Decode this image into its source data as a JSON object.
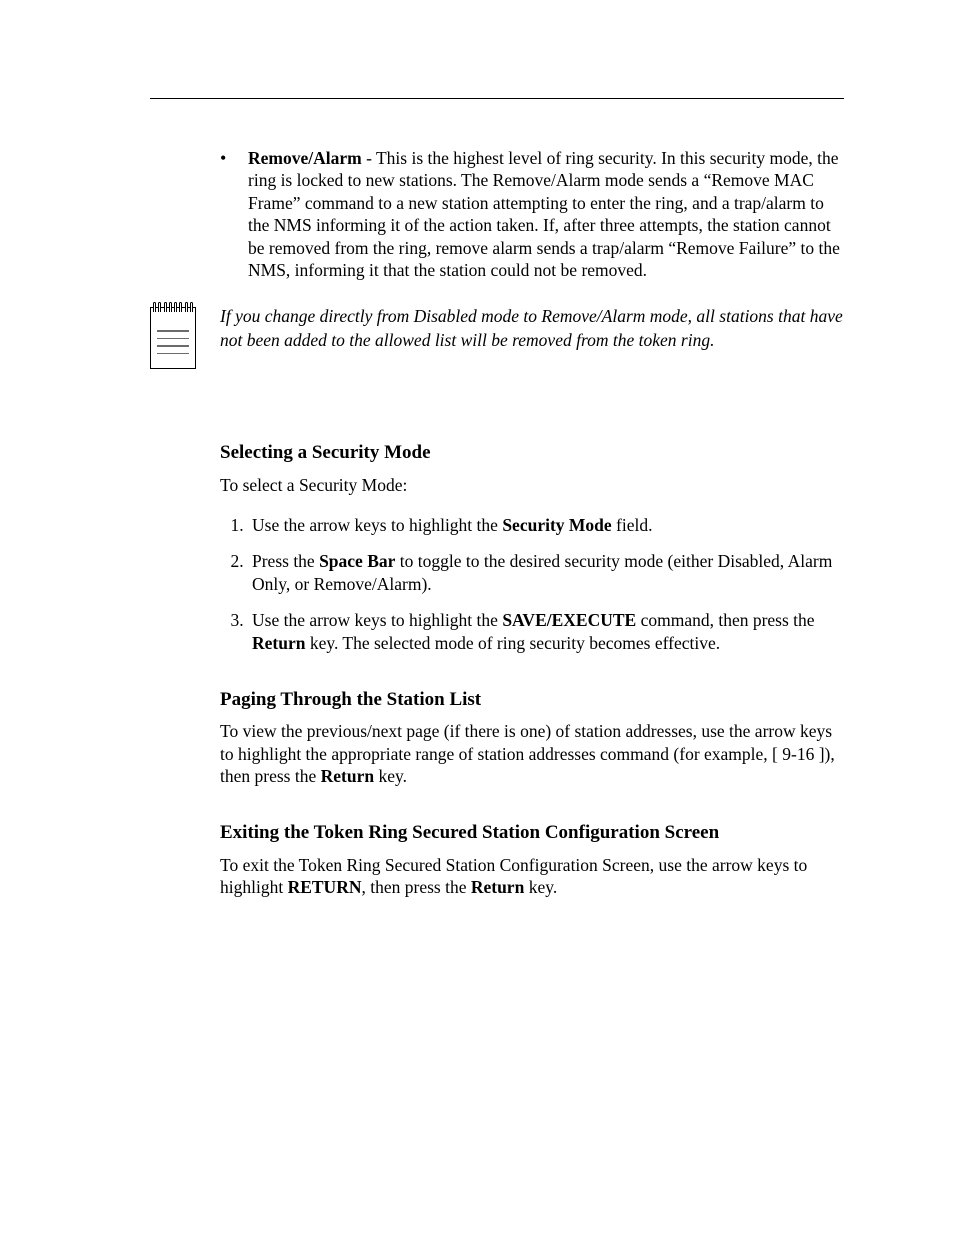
{
  "bullet": {
    "title": "Remove/Alarm",
    "text_after_title": " - This is the highest level of ring security. In this security mode, the ring is locked to new stations. The Remove/Alarm mode sends a “Remove MAC Frame” command to a new station attempting to enter the ring, and a trap/alarm to the NMS informing it of the action taken. If, after three attempts, the station cannot be removed from the ring, remove alarm sends a trap/alarm “Remove Failure” to the NMS, informing it that the station could not be removed."
  },
  "note": {
    "text": "If you change directly from Disabled mode to Remove/Alarm mode, all stations that have not been added to the allowed list will be removed from the token ring."
  },
  "select_mode": {
    "heading": "Selecting a Security Mode",
    "intro": "To select a Security Mode:",
    "steps": {
      "s1a": "Use the arrow keys to highlight the ",
      "s1b": "Security Mode",
      "s1c": " field.",
      "s2a": "Press the ",
      "s2b": "Space Bar",
      "s2c": " to toggle to the desired security mode (either Disabled, Alarm Only, or Remove/Alarm).",
      "s3a": "Use the arrow keys to highlight the ",
      "s3b": "SAVE/EXECUTE",
      "s3c": " command, then press the ",
      "s3d": "Return",
      "s3e": " key. The selected mode of ring security becomes effective."
    }
  },
  "paging": {
    "heading": "Paging Through the Station List",
    "p1": "To view the previous/next page (if there is one) of station addresses, use the arrow keys to highlight the appropriate range of station addresses command (for example, [ 9-16 ]), then press the ",
    "p1b": "Return",
    "p1c": " key."
  },
  "exit": {
    "heading": "Exiting the Token Ring Secured Station Configuration Screen",
    "p1": "To exit the Token Ring Secured Station Configuration Screen, use the arrow keys to highlight ",
    "p1b": "RETURN",
    "p1c": ", then press the ",
    "p1d": "Return",
    "p1e": " key."
  }
}
